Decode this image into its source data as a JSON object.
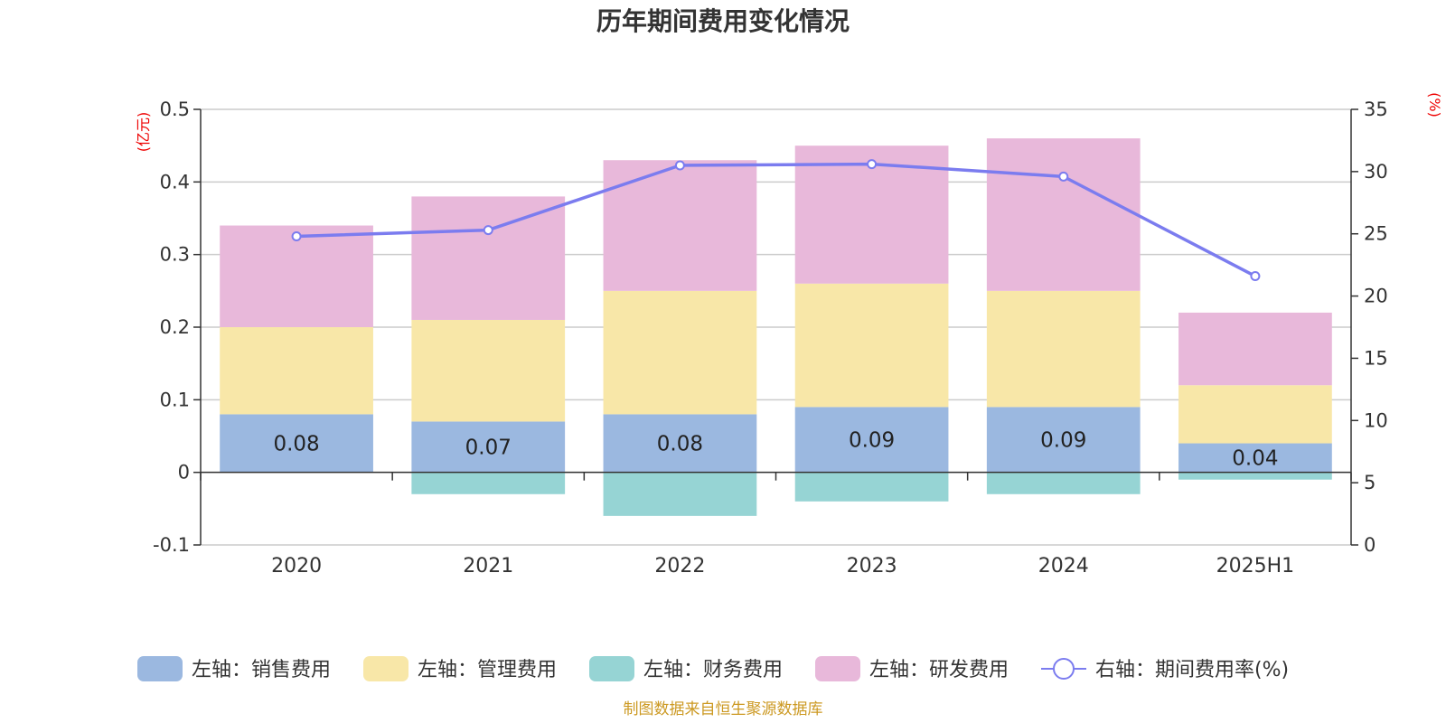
{
  "chart_data": {
    "type": "bar",
    "title": "历年期间费用变化情况",
    "left_axis_unit": "(亿元)",
    "right_axis_unit": "(%)",
    "categories": [
      "2020",
      "2021",
      "2022",
      "2023",
      "2024",
      "2025H1"
    ],
    "left_ylim": [
      -0.1,
      0.5
    ],
    "left_ticks": [
      "-0.1",
      "0",
      "0.1",
      "0.2",
      "0.3",
      "0.4",
      "0.5"
    ],
    "right_ylim": [
      0,
      35
    ],
    "right_ticks": [
      "0",
      "5",
      "10",
      "15",
      "20",
      "25",
      "30",
      "35"
    ],
    "stacked": true,
    "grid": true,
    "legend_position": "bottom",
    "series": [
      {
        "name": "左轴：销售费用",
        "axis": "left",
        "type": "bar",
        "color": "#9bb8e0",
        "values": [
          0.08,
          0.07,
          0.08,
          0.09,
          0.09,
          0.04
        ],
        "labels": [
          "0.08",
          "0.07",
          "0.08",
          "0.09",
          "0.09",
          "0.04"
        ]
      },
      {
        "name": "左轴：管理费用",
        "axis": "left",
        "type": "bar",
        "color": "#f8e7a8",
        "values": [
          0.12,
          0.14,
          0.17,
          0.17,
          0.16,
          0.08
        ]
      },
      {
        "name": "左轴：财务费用",
        "axis": "left",
        "type": "bar",
        "color": "#96d4d4",
        "values": [
          0.0,
          -0.03,
          -0.06,
          -0.04,
          -0.03,
          -0.01
        ]
      },
      {
        "name": "左轴：研发费用",
        "axis": "left",
        "type": "bar",
        "color": "#e8b8da",
        "values": [
          0.14,
          0.17,
          0.18,
          0.19,
          0.21,
          0.1
        ]
      },
      {
        "name": "右轴：期间费用率(%)",
        "axis": "right",
        "type": "line",
        "color": "#7b7cef",
        "values": [
          24.8,
          25.3,
          30.5,
          30.6,
          29.6,
          21.6
        ]
      }
    ],
    "source": "制图数据来自恒生聚源数据库",
    "colors": {
      "unit_text": "#ee0000",
      "source_text": "#cc9922",
      "grid": "#cccccc",
      "axis": "#333333"
    }
  }
}
